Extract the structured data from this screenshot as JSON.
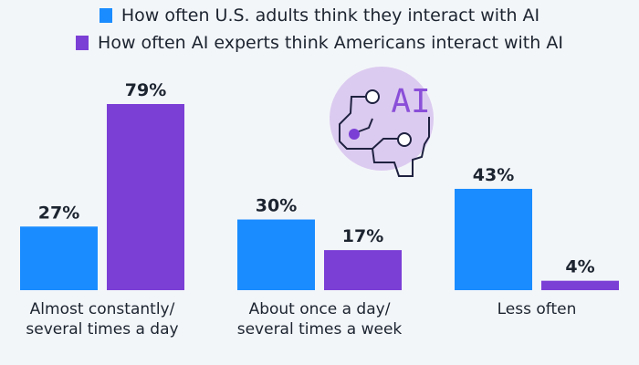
{
  "chart_data": {
    "type": "bar",
    "categories": [
      "Almost constantly/\nseveral times a day",
      "About once a day/\nseveral times a week",
      "Less often"
    ],
    "category_lines": [
      [
        "Almost constantly/",
        "several times a day"
      ],
      [
        "About once a day/",
        "several times a week"
      ],
      [
        "Less often"
      ]
    ],
    "series": [
      {
        "name": "How often U.S. adults think they interact with AI",
        "values": [
          27,
          30,
          43
        ],
        "color": "#1a8cff"
      },
      {
        "name": "How often AI experts think Americans interact with AI",
        "values": [
          79,
          17,
          4
        ],
        "color": "#7b3fd6"
      }
    ],
    "value_suffix": "%",
    "ylim": [
      0,
      100
    ],
    "grid": false,
    "legend_placement": "top",
    "data_labels": true
  },
  "icon": {
    "name": "ai-brain-circuit-icon",
    "text": "AI"
  }
}
